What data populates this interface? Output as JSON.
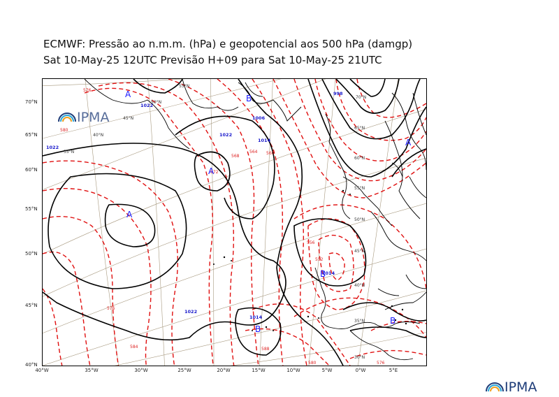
{
  "title_line1": "ECMWF:  Pressão ao n.m.m. (hPa) e geopotencial aos 500 hPa (damgp)",
  "title_line2": "Sat 10-May-25 12UTC Previsão H+09 para Sat 10-May-25 21UTC",
  "logo_text": "IPMA",
  "frame_lon_labels": [
    "40°W",
    "35°W",
    "30°W",
    "25°W",
    "20°W",
    "15°W",
    "10°W",
    "5°W",
    "0°W",
    "5°E"
  ],
  "frame_lat_labels": [
    "70°N",
    "65°N",
    "60°N",
    "55°N",
    "50°N",
    "45°N",
    "40°N"
  ],
  "grid_lat_labels": [
    "55°N",
    "50°N",
    "45°N",
    "40°N",
    "35°N",
    "70°N",
    "65°N",
    "60°N",
    "55°N",
    "50°N",
    "45°N",
    "40°N",
    "35°N",
    "30°N"
  ],
  "pressure_centers": [
    "A",
    "A",
    "A",
    "A",
    "B",
    "B",
    "B",
    "B"
  ],
  "isobar_labels": [
    "1022",
    "1022",
    "1022",
    "1014",
    "1006",
    "1014",
    "998",
    "1014",
    "1022"
  ],
  "geopotential_labels": [
    "580",
    "576",
    "572",
    "568",
    "564",
    "560",
    "556",
    "552",
    "576",
    "584",
    "588",
    "580",
    "576"
  ],
  "colors": {
    "isobar": "#000000",
    "geopotential": "#e01010",
    "centers": "#1a1aff",
    "coast": "#000000",
    "graticule": "#a89a80",
    "logo": "#1e3c78"
  }
}
